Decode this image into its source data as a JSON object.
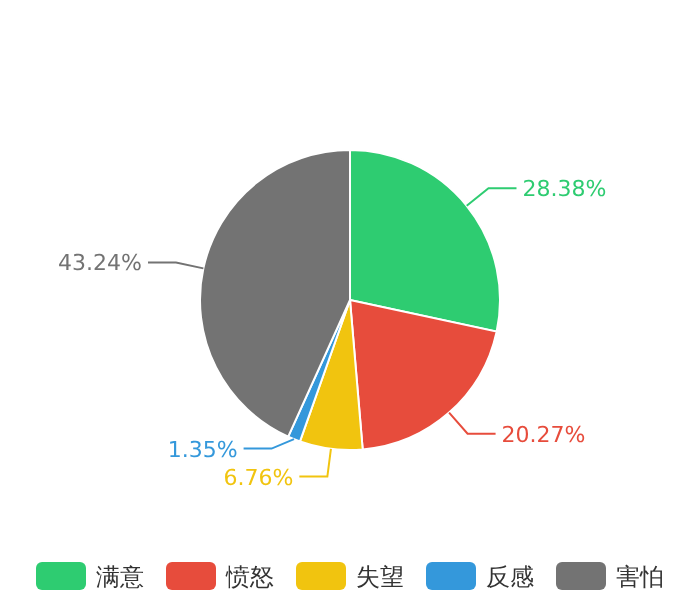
{
  "chart_data": {
    "type": "pie",
    "categories": [
      "满意",
      "愤怒",
      "失望",
      "反感",
      "害怕"
    ],
    "values": [
      28.38,
      20.27,
      6.76,
      1.35,
      43.24
    ],
    "value_labels": [
      "28.38%",
      "20.27%",
      "6.76%",
      "1.35%",
      "43.24%"
    ],
    "colors": [
      "#2ecc71",
      "#e74c3c",
      "#f1c40f",
      "#3498db",
      "#737373"
    ],
    "legend": "bottom"
  }
}
